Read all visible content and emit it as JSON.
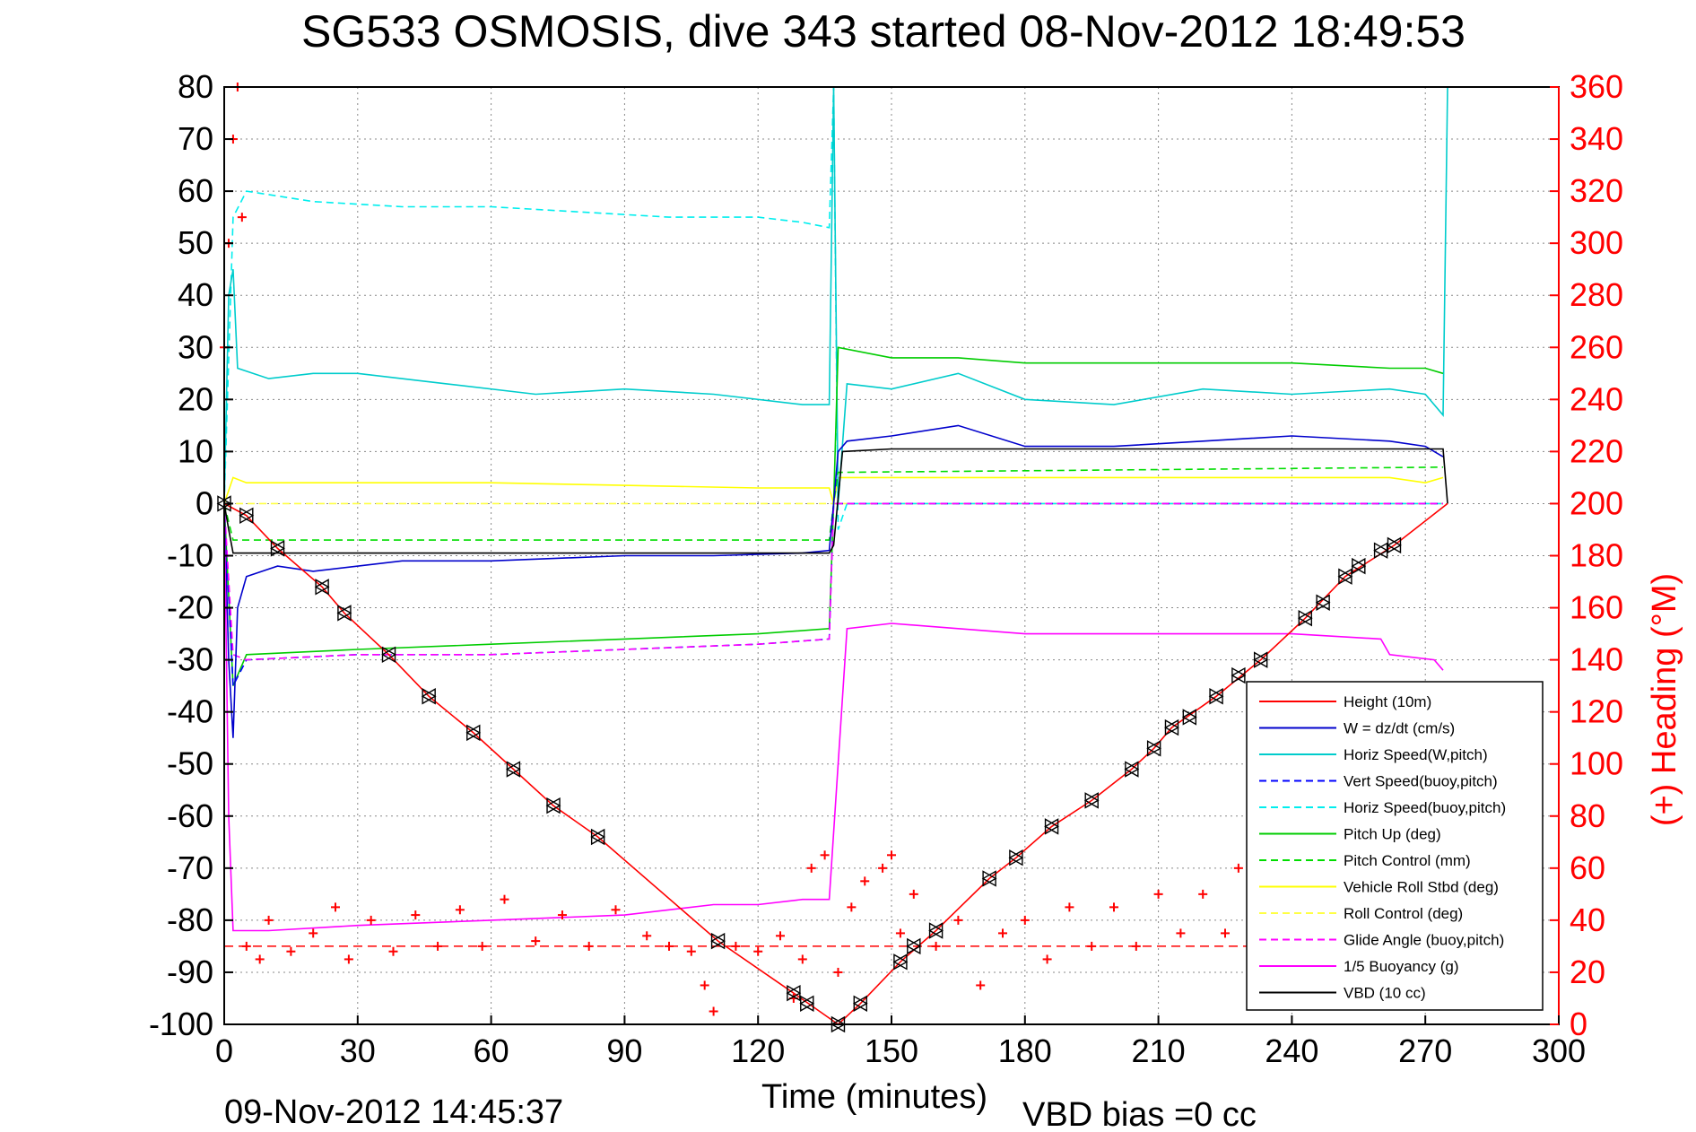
{
  "chart_data": {
    "type": "line",
    "title": "SG533 OSMOSIS, dive 343 started 08-Nov-2012 18:49:53",
    "xlabel": "Time (minutes)",
    "ylabel_right": "(+) Heading (°M)",
    "xlim": [
      0,
      300
    ],
    "ylim": [
      -100,
      80
    ],
    "ylim_right": [
      0,
      360
    ],
    "xticks": [
      "0",
      "30",
      "60",
      "90",
      "120",
      "150",
      "180",
      "210",
      "240",
      "270",
      "300"
    ],
    "yticks": [
      "80",
      "70",
      "60",
      "50",
      "40",
      "30",
      "20",
      "10",
      "0",
      "-10",
      "-20",
      "-30",
      "-40",
      "-50",
      "-60",
      "-70",
      "-80",
      "-90",
      "-100"
    ],
    "yticks_right": [
      "360",
      "340",
      "320",
      "300",
      "280",
      "260",
      "240",
      "220",
      "200",
      "180",
      "160",
      "140",
      "120",
      "100",
      "80",
      "60",
      "40",
      "20",
      "0"
    ],
    "grid": true,
    "legend_position": "bottom-right",
    "footer_date": "09-Nov-2012 14:45:37",
    "footer_note": "VBD bias =0 cc",
    "series": [
      {
        "name": "Height (10m)",
        "color": "#ff0000",
        "style": "solid",
        "x": [
          0,
          5,
          12,
          22,
          27,
          37,
          46,
          56,
          65,
          74,
          84,
          111,
          128,
          138,
          143,
          152,
          160,
          172,
          178,
          186,
          195,
          204,
          209,
          213,
          223,
          233,
          243,
          252,
          263,
          275
        ],
        "y": [
          0,
          -2.3,
          -8.6,
          -16,
          -21,
          -29,
          -37,
          -44,
          -51,
          -58,
          -64,
          -84,
          -94,
          -100,
          -96,
          -88,
          -82,
          -72,
          -68,
          -62,
          -57,
          -51,
          -47,
          -43,
          -37,
          -30,
          -22,
          -14,
          -8,
          0
        ]
      },
      {
        "name": "W = dz/dt (cm/s)",
        "color": "#0000cc",
        "style": "solid",
        "x": [
          0,
          1,
          2,
          3,
          5,
          12,
          20,
          40,
          60,
          90,
          110,
          130,
          136,
          137,
          138,
          140,
          150,
          165,
          180,
          200,
          220,
          240,
          262,
          270,
          274
        ],
        "y": [
          0,
          -30,
          -45,
          -20,
          -14,
          -12,
          -13,
          -11,
          -11,
          -10,
          -10,
          -9.5,
          -9,
          0,
          10,
          12,
          13,
          15,
          11,
          11,
          12,
          13,
          12,
          11,
          9
        ]
      },
      {
        "name": "Horiz Speed(W,pitch)",
        "color": "#00cccc",
        "style": "solid",
        "x": [
          0,
          1,
          2,
          3,
          10,
          20,
          30,
          50,
          70,
          90,
          110,
          130,
          136,
          137,
          138,
          140,
          150,
          165,
          180,
          200,
          220,
          240,
          262,
          270,
          274,
          275
        ],
        "y": [
          0,
          40,
          45,
          26,
          24,
          25,
          25,
          23,
          21,
          22,
          21,
          19,
          19,
          80,
          0,
          23,
          22,
          25,
          20,
          19,
          22,
          21,
          22,
          21,
          17,
          80
        ]
      },
      {
        "name": "Vert Speed(buoy,pitch)",
        "color": "#0000ff",
        "style": "dashed",
        "x": [
          0,
          2,
          5,
          30,
          60,
          90,
          120,
          136,
          137,
          274
        ],
        "y": [
          0,
          -35,
          -30,
          -29,
          -29,
          -28,
          -27,
          -26,
          0,
          0
        ]
      },
      {
        "name": "Horiz Speed(buoy,pitch)",
        "color": "#00eeee",
        "style": "dashed",
        "x": [
          0,
          2,
          5,
          20,
          40,
          60,
          80,
          100,
          120,
          130,
          136,
          137,
          138,
          140,
          274
        ],
        "y": [
          0,
          55,
          60,
          58,
          57,
          57,
          56,
          55,
          55,
          54,
          53,
          80,
          -5,
          0,
          0
        ]
      },
      {
        "name": "Pitch Up (deg)",
        "color": "#00cc00",
        "style": "solid",
        "x": [
          0,
          2,
          5,
          30,
          60,
          90,
          120,
          136,
          137,
          138,
          150,
          165,
          180,
          210,
          240,
          262,
          270,
          274
        ],
        "y": [
          0,
          -35,
          -29,
          -28,
          -27,
          -26,
          -25,
          -24,
          0,
          30,
          28,
          28,
          27,
          27,
          27,
          26,
          26,
          25
        ]
      },
      {
        "name": "Pitch Control (mm)",
        "color": "#00dd00",
        "style": "dashed",
        "x": [
          0,
          2,
          10,
          60,
          120,
          136,
          137,
          138,
          274
        ],
        "y": [
          0,
          -7,
          -7,
          -7,
          -7,
          -7,
          0,
          6,
          7
        ]
      },
      {
        "name": "Vehicle Roll Stbd (deg)",
        "color": "#ffff00",
        "style": "solid",
        "x": [
          0,
          2,
          5,
          30,
          60,
          90,
          120,
          136,
          137,
          138,
          150,
          180,
          210,
          240,
          262,
          270,
          274
        ],
        "y": [
          0,
          5,
          4,
          4,
          4,
          3.5,
          3,
          3,
          0,
          5,
          5,
          5,
          5,
          5,
          5,
          4,
          5
        ]
      },
      {
        "name": "Roll Control (deg)",
        "color": "#ffff44",
        "style": "dashed",
        "x": [
          0,
          5,
          136,
          137,
          138,
          274
        ],
        "y": [
          0,
          0,
          0,
          0,
          0,
          0
        ]
      },
      {
        "name": "Glide Angle (buoy,pitch)",
        "color": "#ff00ff",
        "style": "dashed",
        "x": [
          0,
          2,
          5,
          30,
          60,
          90,
          120,
          136,
          137,
          138,
          274
        ],
        "y": [
          0,
          -29,
          -30,
          -29,
          -29,
          -28,
          -27,
          -26,
          0,
          0,
          0
        ]
      },
      {
        "name": "1/5 Buoyancy (g)",
        "color": "#ff00ff",
        "style": "solid",
        "x": [
          0,
          1,
          2,
          10,
          30,
          60,
          90,
          100,
          110,
          120,
          130,
          136,
          138,
          140,
          150,
          165,
          180,
          210,
          240,
          260,
          262,
          272,
          274
        ],
        "y": [
          0,
          -60,
          -82,
          -82,
          -81,
          -80,
          -79,
          -78,
          -77,
          -77,
          -76,
          -76,
          -50,
          -24,
          -23,
          -24,
          -25,
          -25,
          -25,
          -26,
          -29,
          -30,
          -32
        ]
      },
      {
        "name": "VBD (10 cc)",
        "color": "#000000",
        "style": "solid",
        "x": [
          0,
          1,
          2,
          136,
          137,
          139,
          150,
          274,
          275
        ],
        "y": [
          0,
          -5,
          -9.5,
          -9.5,
          -8,
          10,
          10.5,
          10.5,
          0
        ]
      }
    ],
    "heading_series": {
      "name": "Heading",
      "color": "#ff0000",
      "marker": "+",
      "axis": "right",
      "x": [
        0,
        1,
        2,
        3,
        4,
        5,
        8,
        10,
        15,
        20,
        25,
        28,
        33,
        38,
        43,
        48,
        53,
        58,
        63,
        70,
        76,
        82,
        88,
        95,
        100,
        105,
        108,
        110,
        115,
        120,
        125,
        128,
        130,
        132,
        135,
        138,
        141,
        144,
        148,
        150,
        152,
        155,
        160,
        165,
        170,
        175,
        180,
        185,
        190,
        195,
        200,
        205,
        210,
        215,
        220,
        225,
        228,
        232,
        236,
        240,
        245,
        250,
        255,
        260,
        263
      ],
      "y": [
        260,
        300,
        340,
        360,
        310,
        30,
        25,
        40,
        28,
        35,
        45,
        25,
        40,
        28,
        42,
        30,
        44,
        30,
        48,
        32,
        42,
        30,
        44,
        34,
        30,
        28,
        15,
        5,
        30,
        28,
        34,
        10,
        25,
        60,
        65,
        20,
        45,
        55,
        60,
        65,
        35,
        50,
        30,
        40,
        15,
        35,
        40,
        25,
        45,
        30,
        45,
        30,
        50,
        35,
        50,
        35,
        60,
        55,
        30,
        55,
        35,
        60,
        40,
        60,
        45
      ]
    },
    "heading_target": 30,
    "markers": {
      "name": "position fixes",
      "color": "#000000",
      "x": [
        0,
        5,
        12,
        22,
        27,
        37,
        46,
        56,
        65,
        74,
        84,
        111,
        128,
        131,
        138,
        143,
        152,
        155,
        160,
        172,
        178,
        186,
        195,
        204,
        209,
        213,
        217,
        223,
        228,
        233,
        243,
        247,
        252,
        255,
        260,
        263
      ],
      "y": [
        0,
        -2.3,
        -8.6,
        -16,
        -21,
        -29,
        -37,
        -44,
        -51,
        -58,
        -64,
        -84,
        -94,
        -96,
        -100,
        -96,
        -88,
        -85,
        -82,
        -72,
        -68,
        -62,
        -57,
        -51,
        -47,
        -43,
        -41,
        -37,
        -33,
        -30,
        -22,
        -19,
        -14,
        -12,
        -9,
        -8
      ]
    }
  },
  "legend": [
    {
      "label": "Height (10m)",
      "color": "#ff0000",
      "style": "solid"
    },
    {
      "label": "W = dz/dt (cm/s)",
      "color": "#0000cc",
      "style": "solid"
    },
    {
      "label": "Horiz Speed(W,pitch)",
      "color": "#00cccc",
      "style": "solid"
    },
    {
      "label": "Vert Speed(buoy,pitch)",
      "color": "#0000ff",
      "style": "dashed"
    },
    {
      "label": "Horiz Speed(buoy,pitch)",
      "color": "#00eeee",
      "style": "dashed"
    },
    {
      "label": "Pitch Up (deg)",
      "color": "#00cc00",
      "style": "solid"
    },
    {
      "label": "Pitch Control (mm)",
      "color": "#00dd00",
      "style": "dashed"
    },
    {
      "label": "Vehicle Roll Stbd (deg)",
      "color": "#ffff00",
      "style": "solid"
    },
    {
      "label": "Roll Control (deg)",
      "color": "#ffff44",
      "style": "dashed"
    },
    {
      "label": "Glide Angle (buoy,pitch)",
      "color": "#ff00ff",
      "style": "dashed"
    },
    {
      "label": "1/5 Buoyancy (g)",
      "color": "#ff00ff",
      "style": "solid"
    },
    {
      "label": "VBD (10 cc)",
      "color": "#000000",
      "style": "solid"
    }
  ]
}
